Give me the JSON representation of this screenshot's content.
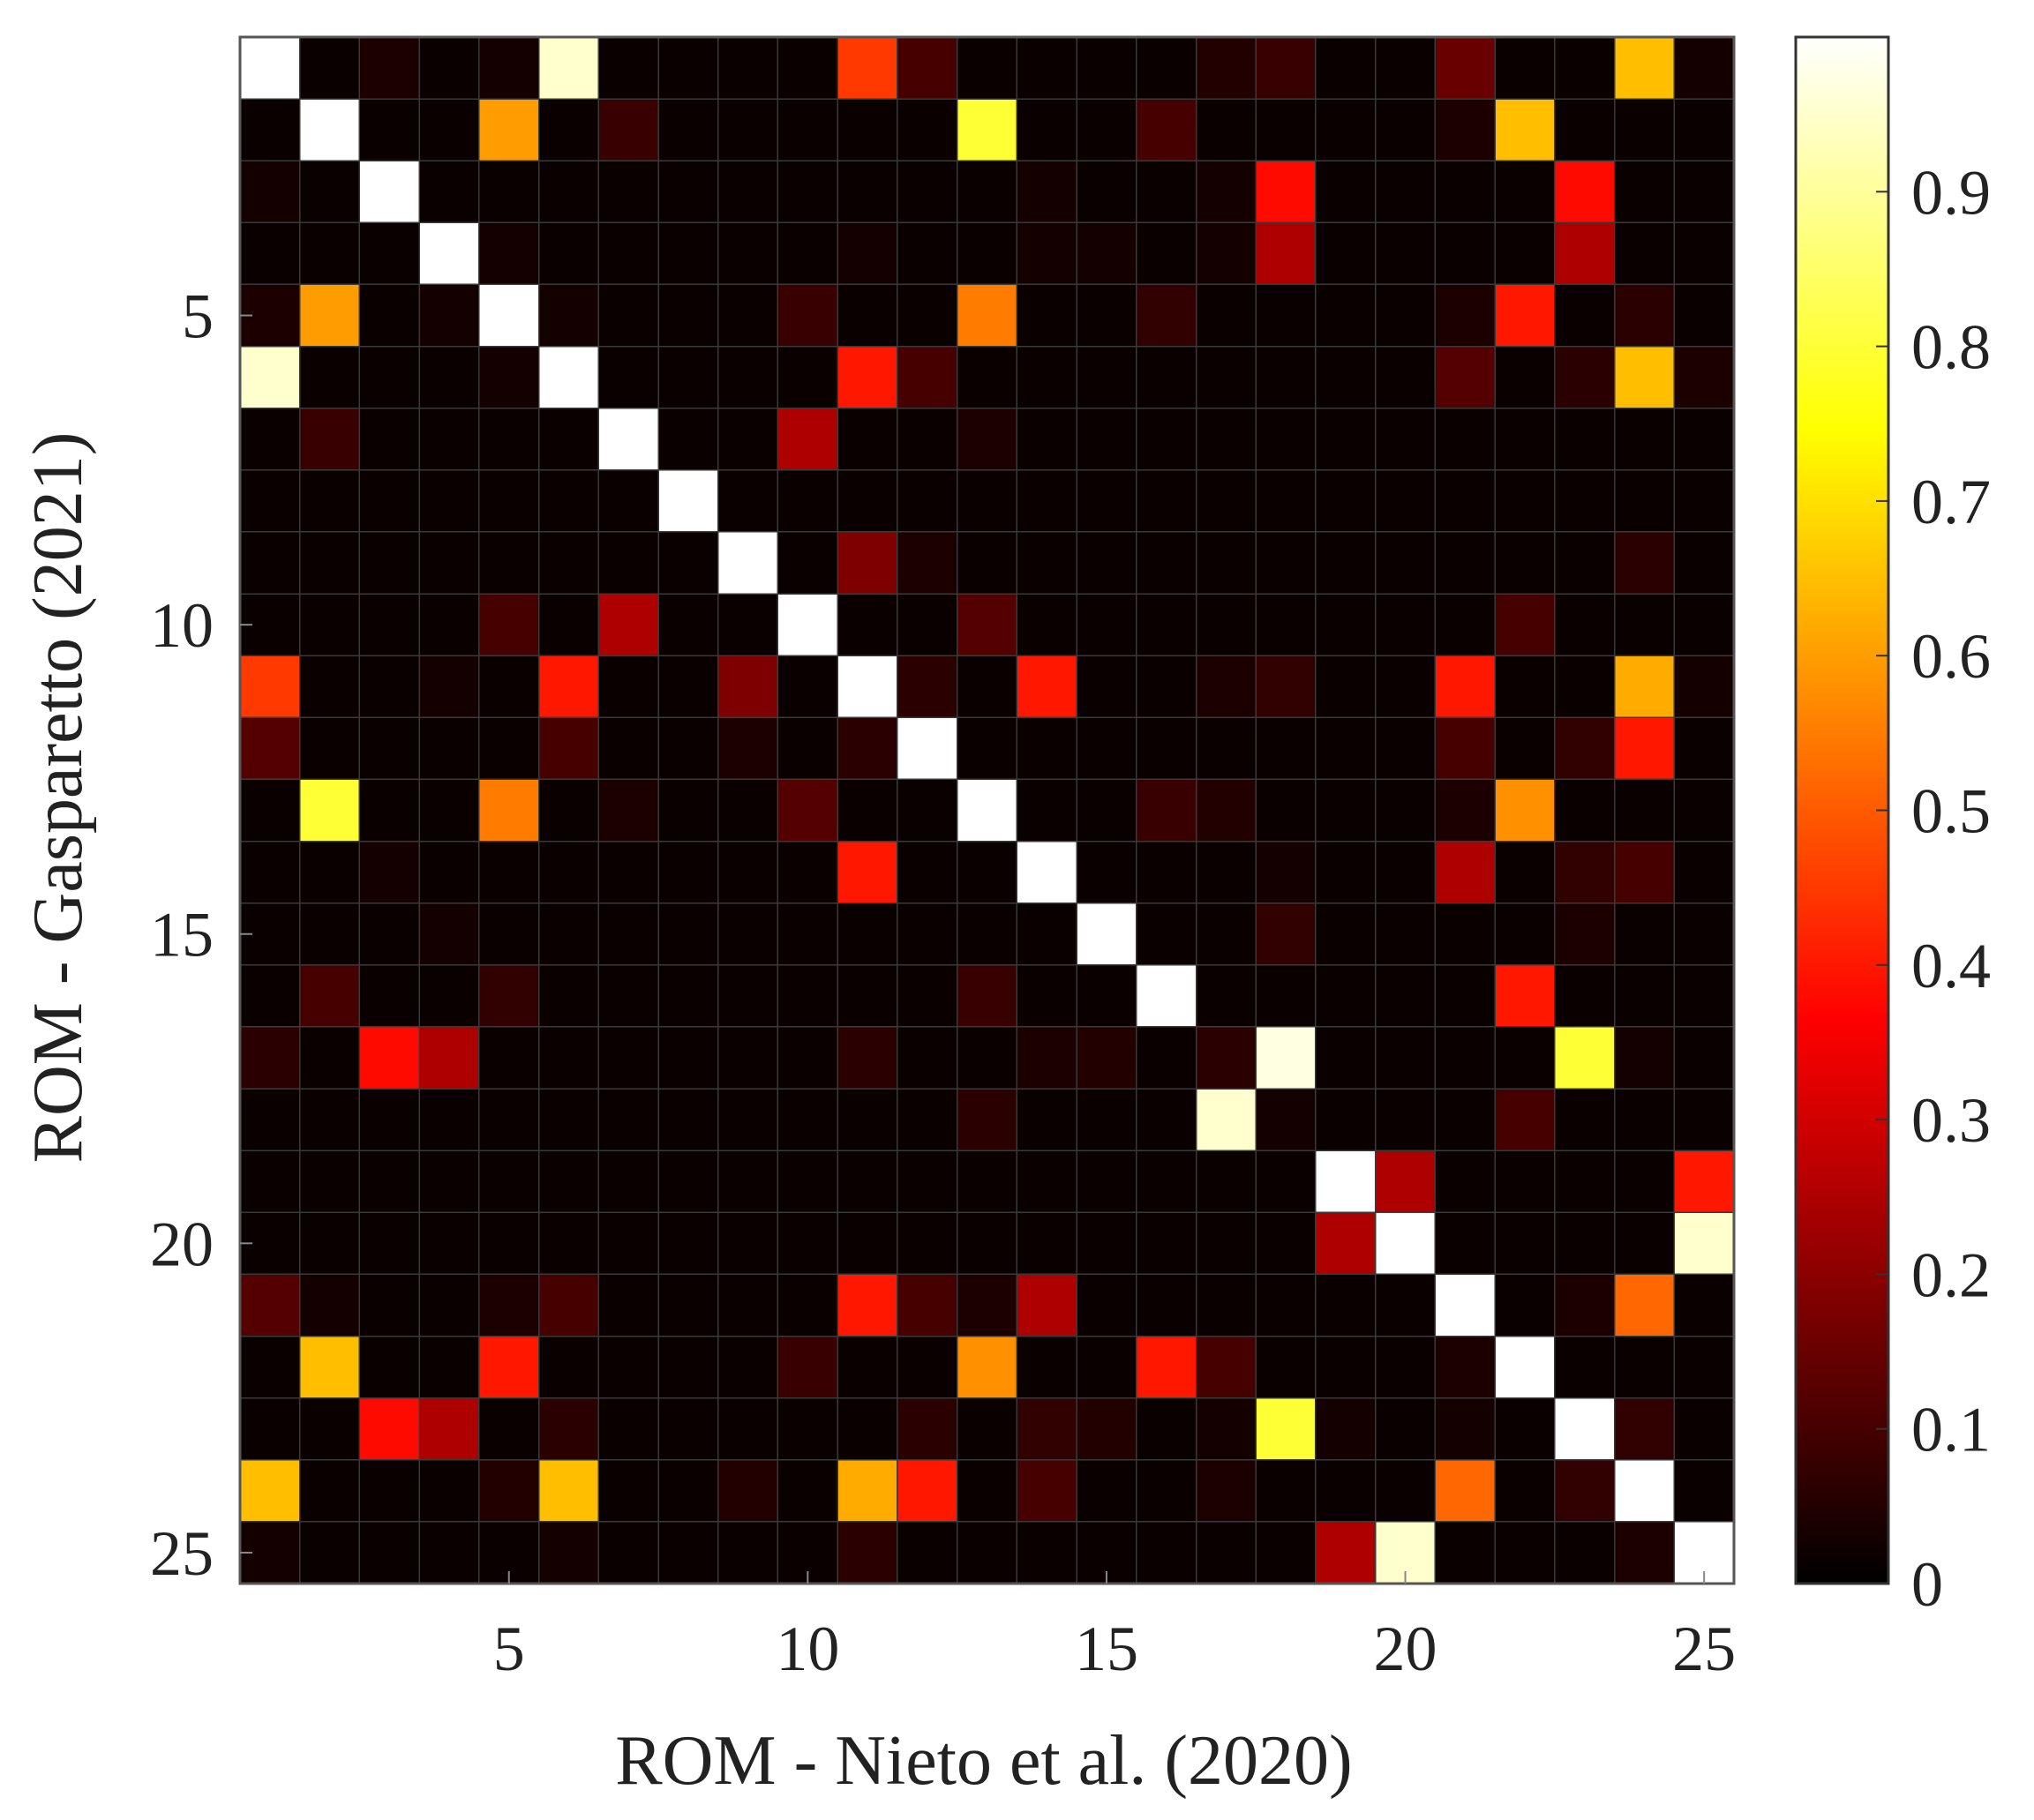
{
  "chart_data": {
    "type": "heatmap",
    "xlabel": "ROM - Nieto et al. (2020)",
    "ylabel": "ROM - Gasparetto (2021)",
    "x_ticks": [
      5,
      10,
      15,
      20,
      25
    ],
    "y_ticks": [
      5,
      10,
      15,
      20,
      25
    ],
    "n_rows": 25,
    "n_cols": 25,
    "value_range": [
      0,
      1
    ],
    "colormap": "hot",
    "colorbar": {
      "ticks": [
        "0",
        "0.1",
        "0.2",
        "0.3",
        "0.4",
        "0.5",
        "0.6",
        "0.7",
        "0.8",
        "0.9"
      ],
      "tick_values": [
        0,
        0.1,
        0.2,
        0.3,
        0.4,
        0.5,
        0.6,
        0.7,
        0.8,
        0.9
      ],
      "placement": "right"
    },
    "cells": [
      {
        "row": 1,
        "col": 1,
        "value": 1.0
      },
      {
        "row": 1,
        "col": 6,
        "value": 0.95
      },
      {
        "row": 1,
        "col": 11,
        "value": 0.45
      },
      {
        "row": 1,
        "col": 12,
        "value": 0.1
      },
      {
        "row": 1,
        "col": 17,
        "value": 0.05
      },
      {
        "row": 1,
        "col": 18,
        "value": 0.08
      },
      {
        "row": 1,
        "col": 21,
        "value": 0.15
      },
      {
        "row": 1,
        "col": 24,
        "value": 0.65
      },
      {
        "row": 1,
        "col": 25,
        "value": 0.03
      },
      {
        "row": 1,
        "col": 3,
        "value": 0.04
      },
      {
        "row": 1,
        "col": 5,
        "value": 0.03
      },
      {
        "row": 2,
        "col": 2,
        "value": 1.0
      },
      {
        "row": 2,
        "col": 5,
        "value": 0.6
      },
      {
        "row": 2,
        "col": 7,
        "value": 0.08
      },
      {
        "row": 2,
        "col": 13,
        "value": 0.8
      },
      {
        "row": 2,
        "col": 16,
        "value": 0.1
      },
      {
        "row": 2,
        "col": 21,
        "value": 0.04
      },
      {
        "row": 2,
        "col": 22,
        "value": 0.65
      },
      {
        "row": 3,
        "col": 3,
        "value": 1.0
      },
      {
        "row": 3,
        "col": 18,
        "value": 0.38
      },
      {
        "row": 3,
        "col": 23,
        "value": 0.38
      },
      {
        "row": 3,
        "col": 1,
        "value": 0.03
      },
      {
        "row": 3,
        "col": 14,
        "value": 0.03
      },
      {
        "row": 3,
        "col": 17,
        "value": 0.03
      },
      {
        "row": 4,
        "col": 4,
        "value": 1.0
      },
      {
        "row": 4,
        "col": 18,
        "value": 0.25
      },
      {
        "row": 4,
        "col": 23,
        "value": 0.25
      },
      {
        "row": 4,
        "col": 5,
        "value": 0.03
      },
      {
        "row": 4,
        "col": 11,
        "value": 0.03
      },
      {
        "row": 4,
        "col": 14,
        "value": 0.03
      },
      {
        "row": 4,
        "col": 15,
        "value": 0.03
      },
      {
        "row": 4,
        "col": 17,
        "value": 0.03
      },
      {
        "row": 5,
        "col": 2,
        "value": 0.6
      },
      {
        "row": 5,
        "col": 5,
        "value": 1.0
      },
      {
        "row": 5,
        "col": 10,
        "value": 0.08
      },
      {
        "row": 5,
        "col": 13,
        "value": 0.55
      },
      {
        "row": 5,
        "col": 16,
        "value": 0.07
      },
      {
        "row": 5,
        "col": 22,
        "value": 0.4
      },
      {
        "row": 5,
        "col": 1,
        "value": 0.04
      },
      {
        "row": 5,
        "col": 4,
        "value": 0.03
      },
      {
        "row": 5,
        "col": 6,
        "value": 0.03
      },
      {
        "row": 5,
        "col": 21,
        "value": 0.04
      },
      {
        "row": 5,
        "col": 24,
        "value": 0.06
      },
      {
        "row": 6,
        "col": 1,
        "value": 0.95
      },
      {
        "row": 6,
        "col": 6,
        "value": 1.0
      },
      {
        "row": 6,
        "col": 11,
        "value": 0.4
      },
      {
        "row": 6,
        "col": 12,
        "value": 0.1
      },
      {
        "row": 6,
        "col": 21,
        "value": 0.12
      },
      {
        "row": 6,
        "col": 23,
        "value": 0.06
      },
      {
        "row": 6,
        "col": 24,
        "value": 0.65
      },
      {
        "row": 6,
        "col": 5,
        "value": 0.03
      },
      {
        "row": 6,
        "col": 25,
        "value": 0.04
      },
      {
        "row": 7,
        "col": 2,
        "value": 0.08
      },
      {
        "row": 7,
        "col": 7,
        "value": 1.0
      },
      {
        "row": 7,
        "col": 10,
        "value": 0.25
      },
      {
        "row": 7,
        "col": 13,
        "value": 0.04
      },
      {
        "row": 8,
        "col": 8,
        "value": 1.0
      },
      {
        "row": 9,
        "col": 9,
        "value": 1.0
      },
      {
        "row": 9,
        "col": 11,
        "value": 0.18
      },
      {
        "row": 9,
        "col": 12,
        "value": 0.04
      },
      {
        "row": 9,
        "col": 24,
        "value": 0.06
      },
      {
        "row": 10,
        "col": 5,
        "value": 0.1
      },
      {
        "row": 10,
        "col": 7,
        "value": 0.25
      },
      {
        "row": 10,
        "col": 10,
        "value": 1.0
      },
      {
        "row": 10,
        "col": 13,
        "value": 0.12
      },
      {
        "row": 10,
        "col": 22,
        "value": 0.1
      },
      {
        "row": 11,
        "col": 1,
        "value": 0.45
      },
      {
        "row": 11,
        "col": 6,
        "value": 0.4
      },
      {
        "row": 11,
        "col": 9,
        "value": 0.18
      },
      {
        "row": 11,
        "col": 11,
        "value": 1.0
      },
      {
        "row": 11,
        "col": 12,
        "value": 0.06
      },
      {
        "row": 11,
        "col": 14,
        "value": 0.4
      },
      {
        "row": 11,
        "col": 17,
        "value": 0.04
      },
      {
        "row": 11,
        "col": 18,
        "value": 0.07
      },
      {
        "row": 11,
        "col": 21,
        "value": 0.4
      },
      {
        "row": 11,
        "col": 24,
        "value": 0.62
      },
      {
        "row": 11,
        "col": 4,
        "value": 0.03
      },
      {
        "row": 11,
        "col": 25,
        "value": 0.03
      },
      {
        "row": 12,
        "col": 1,
        "value": 0.12
      },
      {
        "row": 12,
        "col": 6,
        "value": 0.1
      },
      {
        "row": 12,
        "col": 9,
        "value": 0.04
      },
      {
        "row": 12,
        "col": 11,
        "value": 0.06
      },
      {
        "row": 12,
        "col": 12,
        "value": 1.0
      },
      {
        "row": 12,
        "col": 21,
        "value": 0.1
      },
      {
        "row": 12,
        "col": 23,
        "value": 0.07
      },
      {
        "row": 12,
        "col": 24,
        "value": 0.4
      },
      {
        "row": 13,
        "col": 2,
        "value": 0.8
      },
      {
        "row": 13,
        "col": 5,
        "value": 0.55
      },
      {
        "row": 13,
        "col": 7,
        "value": 0.04
      },
      {
        "row": 13,
        "col": 10,
        "value": 0.12
      },
      {
        "row": 13,
        "col": 13,
        "value": 1.0
      },
      {
        "row": 13,
        "col": 16,
        "value": 0.08
      },
      {
        "row": 13,
        "col": 17,
        "value": 0.05
      },
      {
        "row": 13,
        "col": 21,
        "value": 0.04
      },
      {
        "row": 13,
        "col": 22,
        "value": 0.58
      },
      {
        "row": 14,
        "col": 11,
        "value": 0.4
      },
      {
        "row": 14,
        "col": 14,
        "value": 1.0
      },
      {
        "row": 14,
        "col": 21,
        "value": 0.25
      },
      {
        "row": 14,
        "col": 23,
        "value": 0.07
      },
      {
        "row": 14,
        "col": 24,
        "value": 0.1
      },
      {
        "row": 14,
        "col": 3,
        "value": 0.03
      },
      {
        "row": 14,
        "col": 18,
        "value": 0.03
      },
      {
        "row": 15,
        "col": 15,
        "value": 1.0
      },
      {
        "row": 15,
        "col": 18,
        "value": 0.07
      },
      {
        "row": 15,
        "col": 4,
        "value": 0.03
      },
      {
        "row": 15,
        "col": 23,
        "value": 0.04
      },
      {
        "row": 16,
        "col": 2,
        "value": 0.1
      },
      {
        "row": 16,
        "col": 5,
        "value": 0.07
      },
      {
        "row": 16,
        "col": 13,
        "value": 0.08
      },
      {
        "row": 16,
        "col": 16,
        "value": 1.0
      },
      {
        "row": 16,
        "col": 22,
        "value": 0.4
      },
      {
        "row": 17,
        "col": 1,
        "value": 0.06
      },
      {
        "row": 17,
        "col": 3,
        "value": 0.38
      },
      {
        "row": 17,
        "col": 4,
        "value": 0.25
      },
      {
        "row": 17,
        "col": 11,
        "value": 0.06
      },
      {
        "row": 17,
        "col": 14,
        "value": 0.04
      },
      {
        "row": 17,
        "col": 15,
        "value": 0.05
      },
      {
        "row": 17,
        "col": 17,
        "value": 0.06
      },
      {
        "row": 17,
        "col": 18,
        "value": 0.97
      },
      {
        "row": 17,
        "col": 23,
        "value": 0.8
      },
      {
        "row": 17,
        "col": 24,
        "value": 0.03
      },
      {
        "row": 18,
        "col": 13,
        "value": 0.06
      },
      {
        "row": 18,
        "col": 17,
        "value": 0.95
      },
      {
        "row": 18,
        "col": 18,
        "value": 0.03
      },
      {
        "row": 18,
        "col": 22,
        "value": 0.1
      },
      {
        "row": 19,
        "col": 19,
        "value": 1.0
      },
      {
        "row": 19,
        "col": 20,
        "value": 0.25
      },
      {
        "row": 19,
        "col": 25,
        "value": 0.4
      },
      {
        "row": 20,
        "col": 19,
        "value": 0.25
      },
      {
        "row": 20,
        "col": 20,
        "value": 1.0
      },
      {
        "row": 20,
        "col": 25,
        "value": 0.95
      },
      {
        "row": 21,
        "col": 1,
        "value": 0.12
      },
      {
        "row": 21,
        "col": 2,
        "value": 0.03
      },
      {
        "row": 21,
        "col": 5,
        "value": 0.04
      },
      {
        "row": 21,
        "col": 6,
        "value": 0.1
      },
      {
        "row": 21,
        "col": 11,
        "value": 0.4
      },
      {
        "row": 21,
        "col": 12,
        "value": 0.1
      },
      {
        "row": 21,
        "col": 13,
        "value": 0.04
      },
      {
        "row": 21,
        "col": 14,
        "value": 0.25
      },
      {
        "row": 21,
        "col": 21,
        "value": 1.0
      },
      {
        "row": 21,
        "col": 23,
        "value": 0.04
      },
      {
        "row": 21,
        "col": 24,
        "value": 0.52
      },
      {
        "row": 22,
        "col": 2,
        "value": 0.65
      },
      {
        "row": 22,
        "col": 5,
        "value": 0.4
      },
      {
        "row": 22,
        "col": 10,
        "value": 0.08
      },
      {
        "row": 22,
        "col": 13,
        "value": 0.58
      },
      {
        "row": 22,
        "col": 16,
        "value": 0.4
      },
      {
        "row": 22,
        "col": 17,
        "value": 0.1
      },
      {
        "row": 22,
        "col": 21,
        "value": 0.04
      },
      {
        "row": 22,
        "col": 22,
        "value": 1.0
      },
      {
        "row": 23,
        "col": 3,
        "value": 0.38
      },
      {
        "row": 23,
        "col": 4,
        "value": 0.25
      },
      {
        "row": 23,
        "col": 6,
        "value": 0.06
      },
      {
        "row": 23,
        "col": 12,
        "value": 0.06
      },
      {
        "row": 23,
        "col": 14,
        "value": 0.07
      },
      {
        "row": 23,
        "col": 15,
        "value": 0.05
      },
      {
        "row": 23,
        "col": 17,
        "value": 0.03
      },
      {
        "row": 23,
        "col": 18,
        "value": 0.8
      },
      {
        "row": 23,
        "col": 19,
        "value": 0.03
      },
      {
        "row": 23,
        "col": 21,
        "value": 0.03
      },
      {
        "row": 23,
        "col": 23,
        "value": 1.0
      },
      {
        "row": 23,
        "col": 24,
        "value": 0.07
      },
      {
        "row": 24,
        "col": 1,
        "value": 0.65
      },
      {
        "row": 24,
        "col": 5,
        "value": 0.05
      },
      {
        "row": 24,
        "col": 6,
        "value": 0.65
      },
      {
        "row": 24,
        "col": 9,
        "value": 0.05
      },
      {
        "row": 24,
        "col": 11,
        "value": 0.62
      },
      {
        "row": 24,
        "col": 12,
        "value": 0.4
      },
      {
        "row": 24,
        "col": 14,
        "value": 0.1
      },
      {
        "row": 24,
        "col": 17,
        "value": 0.04
      },
      {
        "row": 24,
        "col": 21,
        "value": 0.52
      },
      {
        "row": 24,
        "col": 23,
        "value": 0.07
      },
      {
        "row": 24,
        "col": 24,
        "value": 1.0
      },
      {
        "row": 25,
        "col": 1,
        "value": 0.03
      },
      {
        "row": 25,
        "col": 6,
        "value": 0.03
      },
      {
        "row": 25,
        "col": 11,
        "value": 0.06
      },
      {
        "row": 25,
        "col": 19,
        "value": 0.25
      },
      {
        "row": 25,
        "col": 20,
        "value": 0.95
      },
      {
        "row": 25,
        "col": 24,
        "value": 0.04
      },
      {
        "row": 25,
        "col": 25,
        "value": 1.0
      }
    ]
  }
}
